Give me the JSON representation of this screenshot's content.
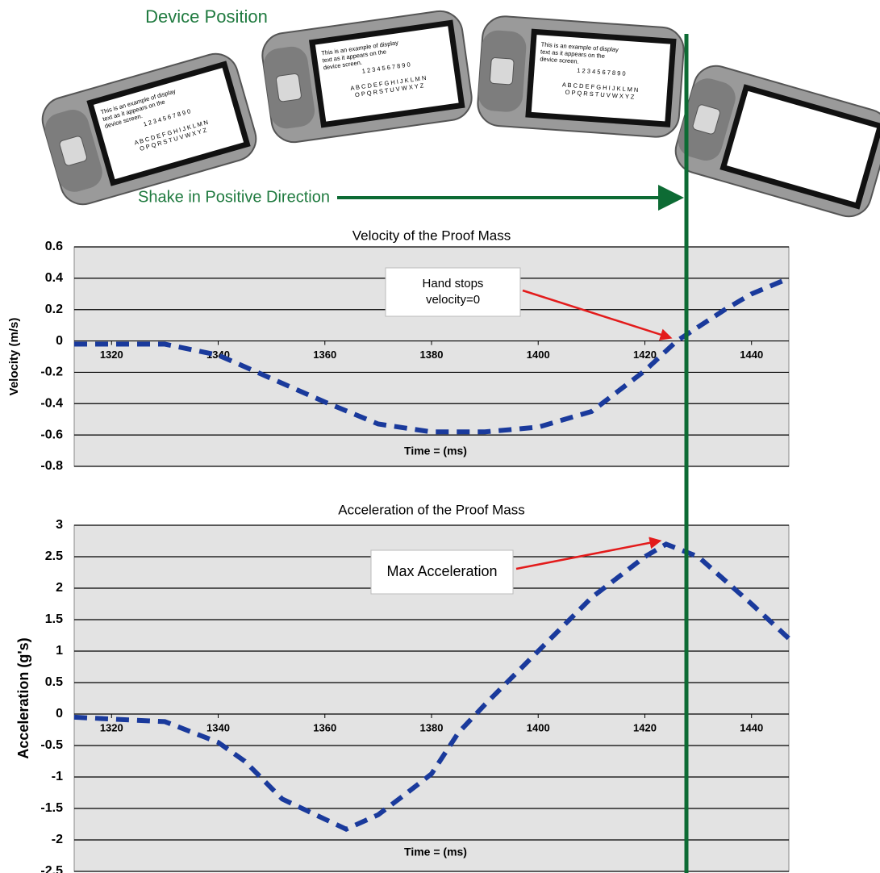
{
  "header": {
    "device_position": "Device Position",
    "shake_label": "Shake in Positive Direction",
    "screen_text": [
      "This is an example of display",
      "text as it appears on the",
      "device screen.",
      "1 2 3 4 5 6 7 8 9 0",
      "A B C D E F G H I J K L M N",
      "O P Q R S T U V W X Y Z"
    ]
  },
  "chart_data": [
    {
      "type": "line",
      "title": "Velocity of the Proof Mass",
      "x_label": "Time =  (ms)",
      "y_label": "Velocity (m/s)",
      "x": [
        1313,
        1320,
        1330,
        1340,
        1350,
        1360,
        1370,
        1380,
        1390,
        1400,
        1410,
        1420,
        1426,
        1435,
        1440,
        1447
      ],
      "values": [
        -0.02,
        -0.02,
        -0.02,
        -0.09,
        -0.24,
        -0.39,
        -0.53,
        -0.58,
        -0.58,
        -0.55,
        -0.45,
        -0.19,
        0,
        0.2,
        0.3,
        0.4
      ],
      "color": "#1a3a9c",
      "line_style": "dashed",
      "xlim": [
        1313,
        1447
      ],
      "xticks": [
        1320,
        1340,
        1360,
        1380,
        1400,
        1420,
        1440
      ],
      "ylim": [
        -0.8,
        0.6
      ],
      "yticks": [
        0.6,
        0.4,
        0.2,
        0,
        -0.2,
        -0.4,
        -0.6,
        -0.8
      ],
      "grid": true,
      "annotation": {
        "text": [
          "Hand stops",
          "velocity=0"
        ],
        "x": 1426,
        "y": 0
      }
    },
    {
      "type": "line",
      "title": "Acceleration of the Proof Mass",
      "x_label": "Time =  (ms)",
      "y_label": "Acceleration (g's)",
      "x": [
        1313,
        1320,
        1330,
        1340,
        1345,
        1352,
        1360,
        1364,
        1370,
        1375,
        1380,
        1385,
        1390,
        1400,
        1410,
        1420,
        1424,
        1430,
        1440,
        1447
      ],
      "values": [
        -0.05,
        -0.08,
        -0.12,
        -0.45,
        -0.75,
        -1.35,
        -1.67,
        -1.83,
        -1.6,
        -1.28,
        -0.95,
        -0.3,
        0.15,
        1.0,
        1.85,
        2.5,
        2.7,
        2.5,
        1.75,
        1.2
      ],
      "color": "#1a3a9c",
      "line_style": "dashed",
      "xlim": [
        1313,
        1447
      ],
      "xticks": [
        1320,
        1340,
        1360,
        1380,
        1400,
        1420,
        1440
      ],
      "ylim": [
        -2.5,
        3
      ],
      "yticks": [
        3,
        2.5,
        2,
        1.5,
        1,
        0.5,
        0,
        -0.5,
        -1,
        -1.5,
        -2,
        -2.5
      ],
      "grid": true,
      "annotation": {
        "text": [
          "Max Acceleration"
        ],
        "x": 1424,
        "y": 2.7
      }
    }
  ]
}
